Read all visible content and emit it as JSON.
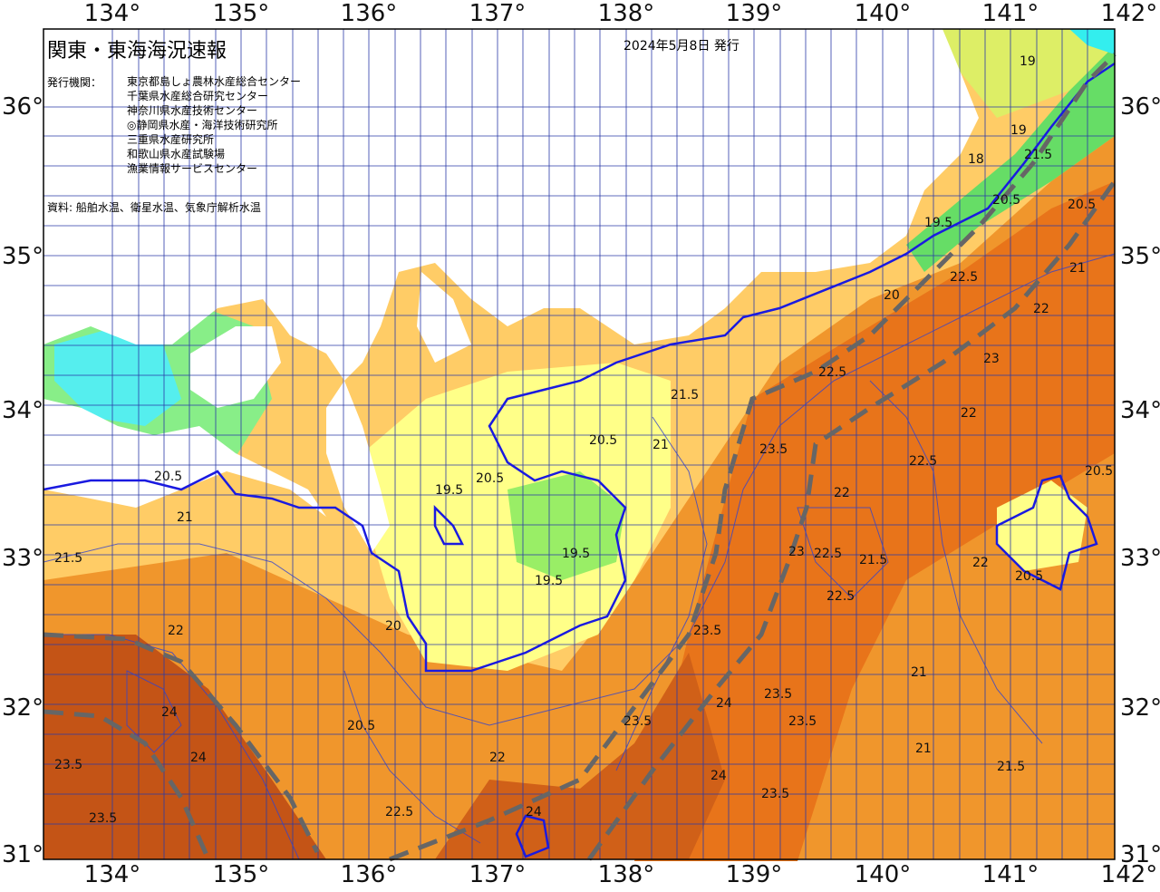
{
  "header": {
    "title": "関東・東海海況速報",
    "date": "2024年5月8日 発行",
    "issuer_label": "発行機関：",
    "issuers": [
      "東京都島しょ農林水産総合センター",
      "千葉県水産総合研究センター",
      "神奈川県水産技術センター",
      "◎静岡県水産・海洋技術研究所",
      "三重県水産研究所",
      "和歌山県水産試験場",
      "漁業情報サービスセンター"
    ],
    "sources": "資料: 船舶水温、衛星水温、気象庁解析水温"
  },
  "axes": {
    "lon_ticks": [
      "134°",
      "135°",
      "136°",
      "137°",
      "138°",
      "139°",
      "140°",
      "141°",
      "142°"
    ],
    "lat_ticks": [
      "36°",
      "35°",
      "34°",
      "33°",
      "32°",
      "31°"
    ]
  },
  "legend_colors": {
    "cold": "#33ffff",
    "cool": "#66ee66",
    "mild": "#ffff88",
    "warm": "#ffcc55",
    "hot": "#ee7711",
    "hottest": "#bb4400",
    "land": "#ffffff",
    "contour_main": "#1111dd",
    "kuroshio": "#666666"
  },
  "contour_labels": [
    "19",
    "19",
    "18",
    "19.5",
    "20",
    "20.5",
    "20.5",
    "21.5",
    "22.5",
    "22.5",
    "22",
    "22",
    "22.5",
    "21",
    "20.5",
    "19.5",
    "20.5",
    "20.5",
    "21",
    "21.5",
    "22",
    "22.5",
    "23",
    "23.5",
    "23",
    "22.5",
    "22",
    "21.5",
    "21",
    "20.5",
    "20",
    "21",
    "22",
    "22",
    "23.5",
    "24",
    "23.5",
    "23.5",
    "24",
    "24",
    "23.5",
    "21.5",
    "21",
    "20.5",
    "23.5",
    "24",
    "23.5",
    "21.5",
    "19.5",
    "19.5",
    "20.5",
    "22.5",
    "23.5",
    "24"
  ]
}
